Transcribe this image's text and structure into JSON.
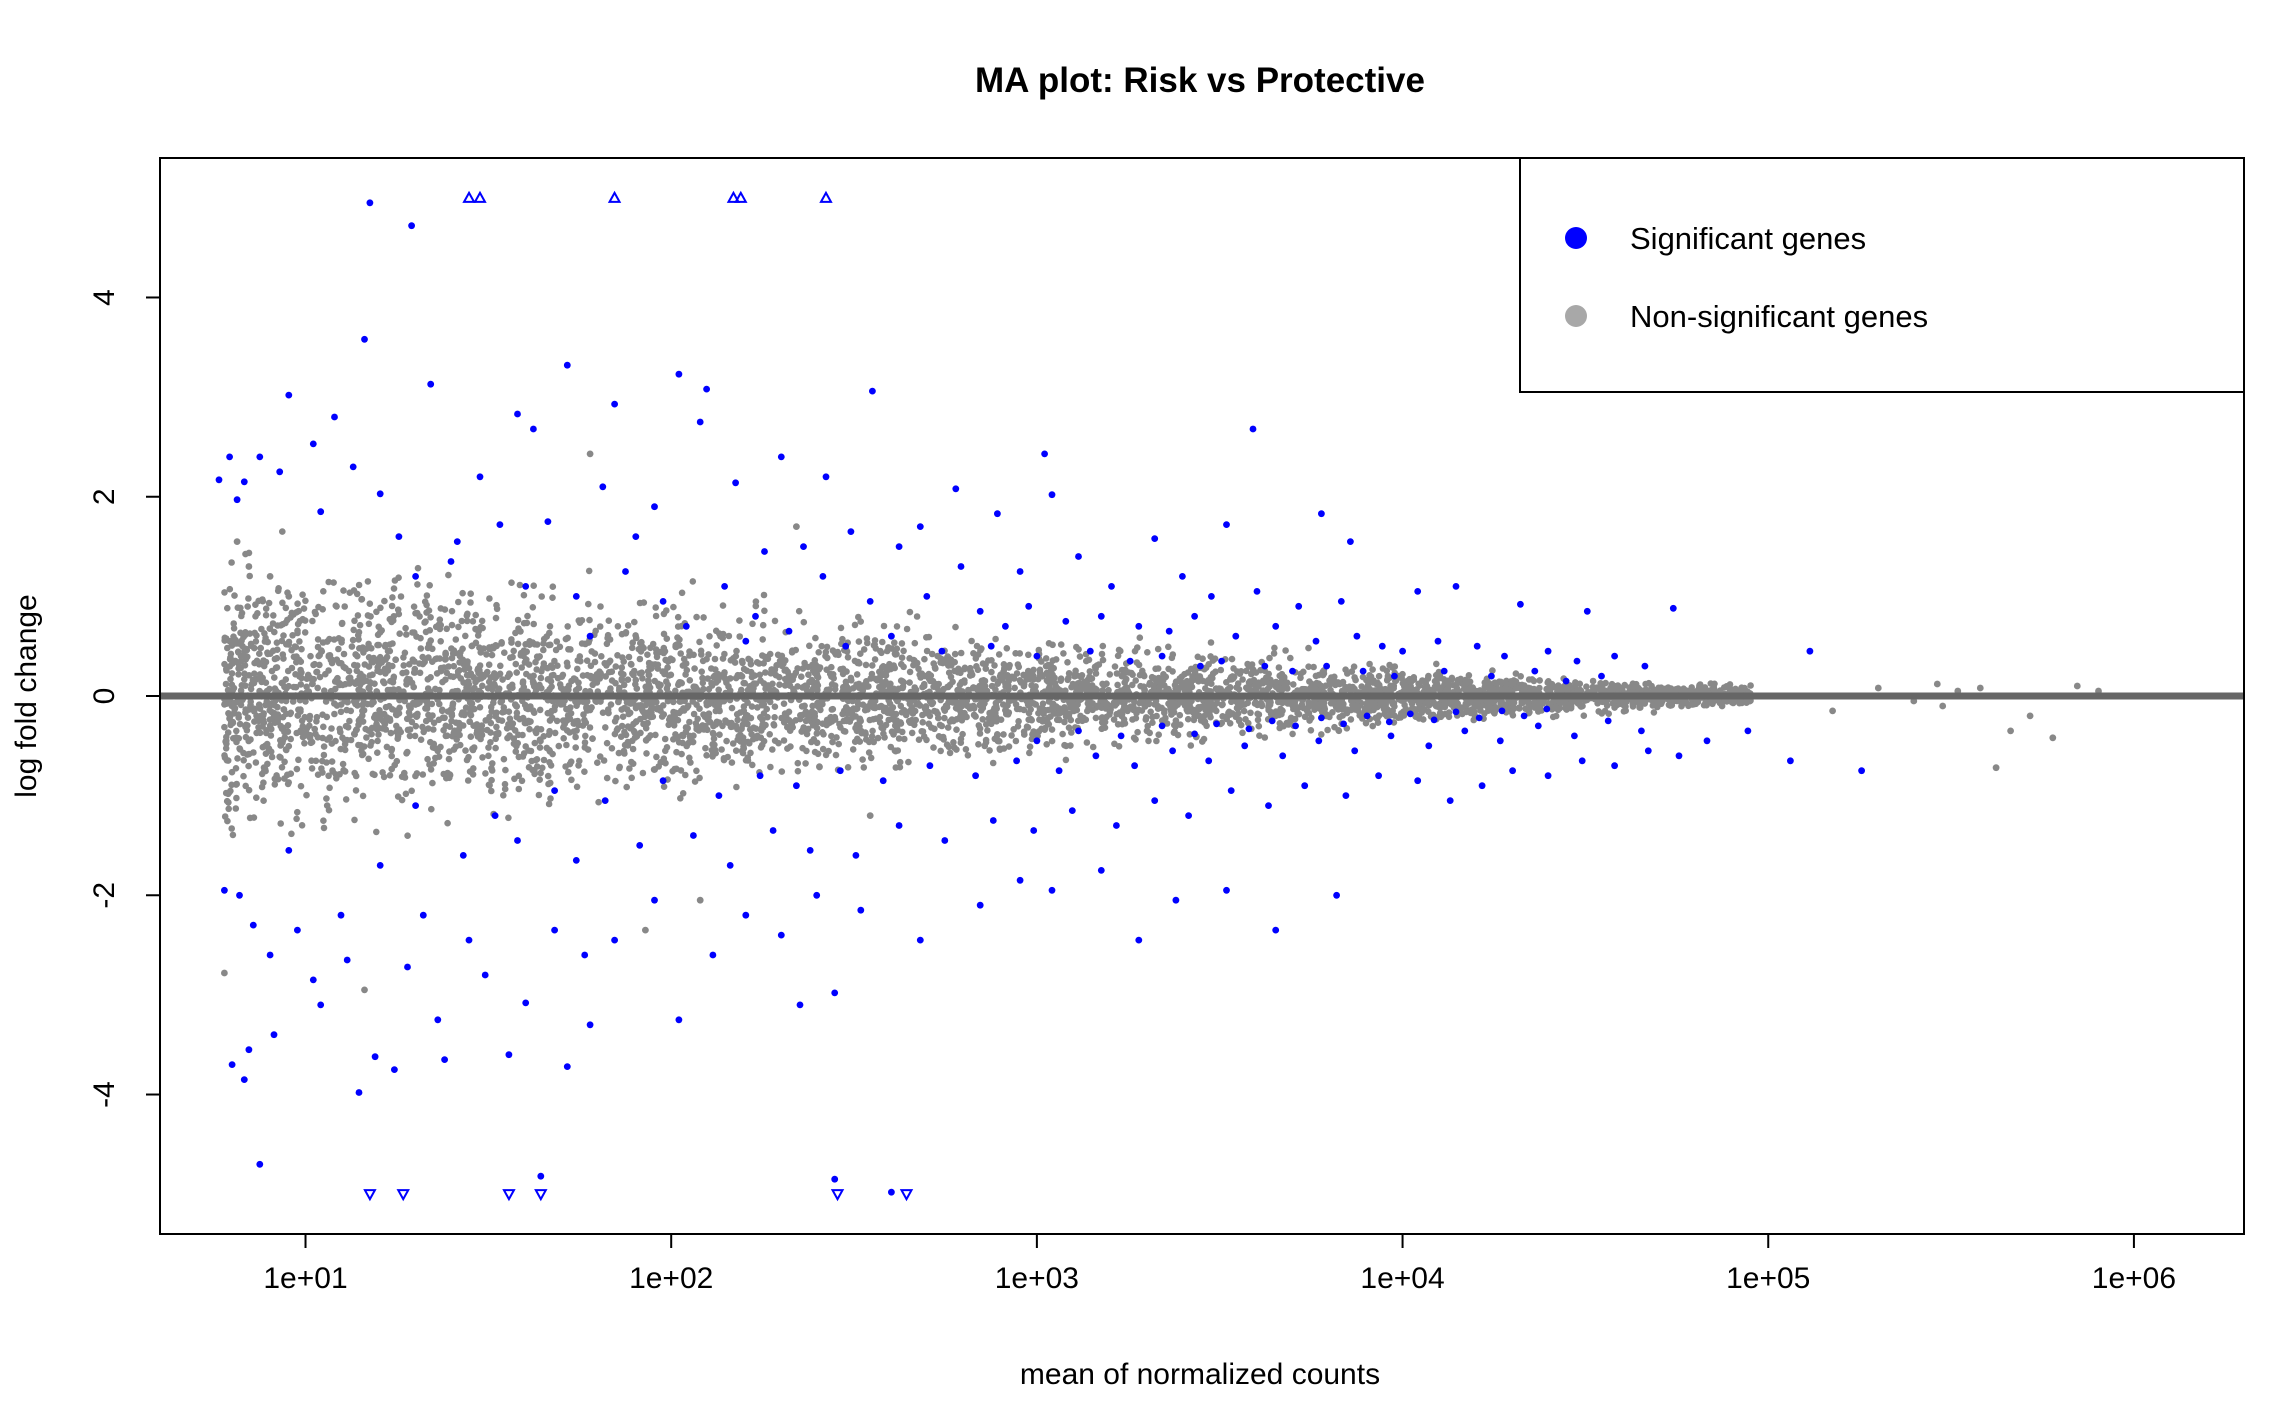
{
  "chart_data": {
    "type": "scatter",
    "title": "MA plot: Risk vs Protective",
    "xlabel": "mean of normalized counts",
    "ylabel": "log fold change",
    "x_scale": "log10",
    "xlim": [
      4.0,
      2000000
    ],
    "ylim": [
      -5.4,
      5.4
    ],
    "x_ticks": [
      10,
      100,
      1000,
      10000,
      100000,
      1000000
    ],
    "x_tick_labels": [
      "1e+01",
      "1e+02",
      "1e+03",
      "1e+04",
      "1e+05",
      "1e+06"
    ],
    "y_ticks": [
      -4,
      -2,
      0,
      2,
      4
    ],
    "y_tick_labels": [
      "-4",
      "-2",
      "0",
      "2",
      "4"
    ],
    "reference_line": {
      "y": 0,
      "color": "#666666"
    },
    "legend": {
      "placement": "top-right",
      "entries": [
        {
          "label": "Significant genes",
          "color": "#0000ff"
        },
        {
          "label": "Non-significant genes",
          "color": "#a8a8a8"
        }
      ]
    },
    "series": [
      {
        "name": "Significant genes",
        "color": "#0000ff",
        "points": [
          [
            15,
            4.95
          ],
          [
            19.5,
            4.72
          ],
          [
            14.5,
            3.58
          ],
          [
            9,
            3.02
          ],
          [
            22,
            3.13
          ],
          [
            12,
            2.8
          ],
          [
            10.5,
            2.53
          ],
          [
            52,
            3.32
          ],
          [
            38,
            2.83
          ],
          [
            42,
            2.68
          ],
          [
            70,
            2.93
          ],
          [
            105,
            3.23
          ],
          [
            125,
            3.08
          ],
          [
            120,
            2.75
          ],
          [
            200,
            2.4
          ],
          [
            265,
            2.2
          ],
          [
            355,
            3.06
          ],
          [
            1050,
            2.43
          ],
          [
            1100,
            2.02
          ],
          [
            3900,
            2.68
          ],
          [
            6.2,
            2.4
          ],
          [
            6.8,
            2.15
          ],
          [
            7.5,
            2.4
          ],
          [
            8.5,
            2.25
          ],
          [
            13.5,
            2.3
          ],
          [
            16,
            2.03
          ],
          [
            30,
            2.2
          ],
          [
            65,
            2.1
          ],
          [
            150,
            2.14
          ],
          [
            600,
            2.08
          ],
          [
            780,
            1.83
          ],
          [
            2100,
            1.58
          ],
          [
            3300,
            1.72
          ],
          [
            6000,
            1.83
          ],
          [
            7200,
            1.55
          ],
          [
            5.8,
            2.17
          ],
          [
            6.5,
            1.97
          ],
          [
            11,
            1.85
          ],
          [
            18,
            1.6
          ],
          [
            26,
            1.55
          ],
          [
            34,
            1.72
          ],
          [
            46,
            1.75
          ],
          [
            80,
            1.6
          ],
          [
            90,
            1.9
          ],
          [
            180,
            1.45
          ],
          [
            230,
            1.5
          ],
          [
            310,
            1.65
          ],
          [
            420,
            1.5
          ],
          [
            480,
            1.7
          ],
          [
            620,
            1.3
          ],
          [
            900,
            1.25
          ],
          [
            1300,
            1.4
          ],
          [
            1600,
            1.1
          ],
          [
            2500,
            1.2
          ],
          [
            3000,
            1.0
          ],
          [
            4000,
            1.05
          ],
          [
            5200,
            0.9
          ],
          [
            6800,
            0.95
          ],
          [
            11000,
            1.05
          ],
          [
            14000,
            1.1
          ],
          [
            21000,
            0.92
          ],
          [
            32000,
            0.85
          ],
          [
            55000,
            0.88
          ],
          [
            130000,
            0.45
          ],
          [
            20,
            1.2
          ],
          [
            25,
            1.35
          ],
          [
            40,
            1.1
          ],
          [
            55,
            1.0
          ],
          [
            75,
            1.25
          ],
          [
            95,
            0.95
          ],
          [
            140,
            1.1
          ],
          [
            170,
            0.8
          ],
          [
            260,
            1.2
          ],
          [
            350,
            0.95
          ],
          [
            500,
            1.0
          ],
          [
            700,
            0.85
          ],
          [
            820,
            0.7
          ],
          [
            950,
            0.9
          ],
          [
            1200,
            0.75
          ],
          [
            1500,
            0.8
          ],
          [
            1900,
            0.7
          ],
          [
            2300,
            0.65
          ],
          [
            2700,
            0.8
          ],
          [
            3500,
            0.6
          ],
          [
            4500,
            0.7
          ],
          [
            5800,
            0.55
          ],
          [
            7500,
            0.6
          ],
          [
            8800,
            0.5
          ],
          [
            10000,
            0.45
          ],
          [
            12500,
            0.55
          ],
          [
            16000,
            0.5
          ],
          [
            19000,
            0.4
          ],
          [
            25000,
            0.45
          ],
          [
            30000,
            0.35
          ],
          [
            38000,
            0.4
          ],
          [
            46000,
            0.3
          ],
          [
            60,
            0.6
          ],
          [
            110,
            0.7
          ],
          [
            160,
            0.55
          ],
          [
            210,
            0.65
          ],
          [
            300,
            0.5
          ],
          [
            400,
            0.6
          ],
          [
            550,
            0.45
          ],
          [
            750,
            0.5
          ],
          [
            1000,
            0.4
          ],
          [
            1400,
            0.45
          ],
          [
            1800,
            0.35
          ],
          [
            2200,
            0.4
          ],
          [
            2800,
            0.3
          ],
          [
            3200,
            0.35
          ],
          [
            4200,
            0.3
          ],
          [
            5000,
            0.25
          ],
          [
            6200,
            0.3
          ],
          [
            7800,
            0.25
          ],
          [
            9500,
            0.2
          ],
          [
            13000,
            0.25
          ],
          [
            17500,
            0.2
          ],
          [
            23000,
            0.25
          ],
          [
            28000,
            0.15
          ],
          [
            35000,
            0.2
          ],
          [
            6,
            -1.95
          ],
          [
            6.6,
            -2.0
          ],
          [
            7.2,
            -2.3
          ],
          [
            8,
            -2.6
          ],
          [
            9.5,
            -2.35
          ],
          [
            12.5,
            -2.2
          ],
          [
            7,
            -3.55
          ],
          [
            6.3,
            -3.7
          ],
          [
            6.8,
            -3.85
          ],
          [
            8.2,
            -3.4
          ],
          [
            14,
            -3.98
          ],
          [
            15.5,
            -3.62
          ],
          [
            17.5,
            -3.75
          ],
          [
            23,
            -3.25
          ],
          [
            24,
            -3.65
          ],
          [
            36,
            -3.6
          ],
          [
            40,
            -3.08
          ],
          [
            44,
            -4.82
          ],
          [
            52,
            -3.72
          ],
          [
            60,
            -3.3
          ],
          [
            105,
            -3.25
          ],
          [
            225,
            -3.1
          ],
          [
            280,
            -2.98
          ],
          [
            280,
            -4.85
          ],
          [
            400,
            -4.98
          ],
          [
            7.5,
            -4.7
          ],
          [
            10.5,
            -2.85
          ],
          [
            11,
            -3.1
          ],
          [
            13,
            -2.65
          ],
          [
            19,
            -2.72
          ],
          [
            21,
            -2.2
          ],
          [
            28,
            -2.45
          ],
          [
            31,
            -2.8
          ],
          [
            48,
            -2.35
          ],
          [
            58,
            -2.6
          ],
          [
            70,
            -2.45
          ],
          [
            90,
            -2.05
          ],
          [
            130,
            -2.6
          ],
          [
            160,
            -2.2
          ],
          [
            200,
            -2.4
          ],
          [
            250,
            -2.0
          ],
          [
            330,
            -2.15
          ],
          [
            480,
            -2.45
          ],
          [
            700,
            -2.1
          ],
          [
            900,
            -1.85
          ],
          [
            1100,
            -1.95
          ],
          [
            1500,
            -1.75
          ],
          [
            1900,
            -2.45
          ],
          [
            2400,
            -2.05
          ],
          [
            3300,
            -1.95
          ],
          [
            4500,
            -2.35
          ],
          [
            6600,
            -2.0
          ],
          [
            9,
            -1.55
          ],
          [
            16,
            -1.7
          ],
          [
            27,
            -1.6
          ],
          [
            38,
            -1.45
          ],
          [
            55,
            -1.65
          ],
          [
            82,
            -1.5
          ],
          [
            115,
            -1.4
          ],
          [
            145,
            -1.7
          ],
          [
            190,
            -1.35
          ],
          [
            240,
            -1.55
          ],
          [
            320,
            -1.6
          ],
          [
            420,
            -1.3
          ],
          [
            560,
            -1.45
          ],
          [
            760,
            -1.25
          ],
          [
            980,
            -1.35
          ],
          [
            1250,
            -1.15
          ],
          [
            1650,
            -1.3
          ],
          [
            2100,
            -1.05
          ],
          [
            2600,
            -1.2
          ],
          [
            3400,
            -0.95
          ],
          [
            4300,
            -1.1
          ],
          [
            5400,
            -0.9
          ],
          [
            7000,
            -1.0
          ],
          [
            8600,
            -0.8
          ],
          [
            11000,
            -0.85
          ],
          [
            13500,
            -1.05
          ],
          [
            16500,
            -0.9
          ],
          [
            20000,
            -0.75
          ],
          [
            25000,
            -0.8
          ],
          [
            31000,
            -0.65
          ],
          [
            38000,
            -0.7
          ],
          [
            47000,
            -0.55
          ],
          [
            57000,
            -0.6
          ],
          [
            68000,
            -0.45
          ],
          [
            88000,
            -0.35
          ],
          [
            115000,
            -0.65
          ],
          [
            180000,
            -0.75
          ],
          [
            20,
            -1.1
          ],
          [
            33,
            -1.2
          ],
          [
            48,
            -0.95
          ],
          [
            66,
            -1.05
          ],
          [
            95,
            -0.85
          ],
          [
            135,
            -1.0
          ],
          [
            175,
            -0.8
          ],
          [
            220,
            -0.9
          ],
          [
            290,
            -0.75
          ],
          [
            380,
            -0.85
          ],
          [
            510,
            -0.7
          ],
          [
            680,
            -0.8
          ],
          [
            880,
            -0.65
          ],
          [
            1150,
            -0.75
          ],
          [
            1450,
            -0.6
          ],
          [
            1850,
            -0.7
          ],
          [
            2350,
            -0.55
          ],
          [
            2950,
            -0.65
          ],
          [
            3700,
            -0.5
          ],
          [
            4700,
            -0.6
          ],
          [
            5900,
            -0.45
          ],
          [
            7400,
            -0.55
          ],
          [
            9300,
            -0.4
          ],
          [
            11800,
            -0.5
          ],
          [
            14800,
            -0.35
          ],
          [
            18500,
            -0.45
          ],
          [
            23500,
            -0.3
          ],
          [
            29500,
            -0.4
          ],
          [
            36500,
            -0.25
          ],
          [
            45000,
            -0.35
          ],
          [
            1000,
            -0.45
          ],
          [
            1300,
            -0.35
          ],
          [
            1700,
            -0.4
          ],
          [
            2200,
            -0.3
          ],
          [
            2700,
            -0.38
          ],
          [
            3100,
            -0.28
          ],
          [
            3800,
            -0.33
          ],
          [
            4400,
            -0.25
          ],
          [
            5100,
            -0.3
          ],
          [
            6000,
            -0.22
          ],
          [
            6900,
            -0.28
          ],
          [
            8000,
            -0.2
          ],
          [
            9200,
            -0.26
          ],
          [
            10500,
            -0.18
          ],
          [
            12200,
            -0.24
          ],
          [
            14000,
            -0.16
          ],
          [
            16200,
            -0.22
          ],
          [
            18700,
            -0.15
          ],
          [
            21500,
            -0.2
          ],
          [
            24800,
            -0.13
          ]
        ]
      },
      {
        "name": "Non-significant genes",
        "color": "#888888",
        "points": [
          [
            6,
            -2.78
          ],
          [
            6.5,
            1.55
          ],
          [
            7,
            1.3
          ],
          [
            8,
            1.2
          ],
          [
            9,
            1.0
          ],
          [
            14.5,
            -2.95
          ],
          [
            60,
            2.43
          ],
          [
            220,
            1.7
          ],
          [
            85,
            -2.35
          ],
          [
            120,
            -2.05
          ],
          [
            350,
            -1.2
          ],
          [
            2000,
            -0.35
          ],
          [
            150000,
            -0.15
          ],
          [
            200000,
            0.08
          ],
          [
            250000,
            -0.05
          ],
          [
            290000,
            0.12
          ],
          [
            300000,
            -0.1
          ],
          [
            330000,
            0.05
          ],
          [
            380000,
            0.08
          ],
          [
            420000,
            -0.72
          ],
          [
            460000,
            -0.35
          ],
          [
            520000,
            -0.2
          ],
          [
            600000,
            -0.42
          ],
          [
            700000,
            0.1
          ],
          [
            800000,
            0.05
          ]
        ]
      }
    ],
    "clipped_markers": {
      "shape": "triangle",
      "color": "#0000ff",
      "top": {
        "y": 5.0,
        "x": [
          28,
          30,
          70,
          148,
          155,
          265
        ]
      },
      "bottom": {
        "y": -5.0,
        "x": [
          15,
          18.5,
          36,
          44,
          285,
          440
        ]
      }
    }
  }
}
